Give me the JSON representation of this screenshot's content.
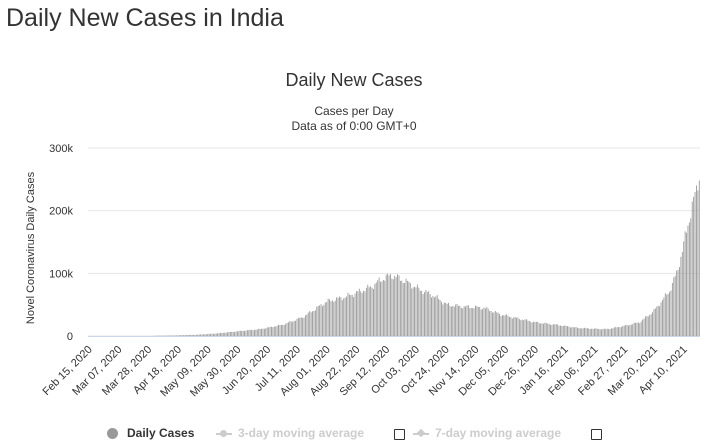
{
  "page_title": "Daily New Cases in India",
  "colors": {
    "bar": "#999999",
    "grid": "#e6e6e6",
    "text": "#333333",
    "legend_inactive": "#cccccc"
  },
  "chart_data": {
    "type": "bar",
    "title": "Daily New Cases",
    "subtitle": [
      "Cases per Day",
      "Data as of 0:00 GMT+0"
    ],
    "xlabel": "",
    "ylabel": "Novel Coronavirus Daily Cases",
    "ylim": [
      0,
      300000
    ],
    "y_ticks": [
      0,
      100000,
      200000,
      300000
    ],
    "y_tick_labels": [
      "0",
      "100k",
      "200k",
      "300k"
    ],
    "x_range": [
      "2020-02-15",
      "2021-04-21"
    ],
    "x_ticks": [
      "2020-02-15",
      "2020-03-07",
      "2020-03-28",
      "2020-04-18",
      "2020-05-09",
      "2020-05-30",
      "2020-06-20",
      "2020-07-11",
      "2020-08-01",
      "2020-08-22",
      "2020-09-12",
      "2020-10-03",
      "2020-10-24",
      "2020-11-14",
      "2020-12-05",
      "2020-12-26",
      "2021-01-16",
      "2021-02-06",
      "2021-02-27",
      "2021-03-20",
      "2021-04-10"
    ],
    "x_tick_labels": [
      "Feb 15, 2020",
      "Mar 07, 2020",
      "Mar 28, 2020",
      "Apr 18, 2020",
      "May 09, 2020",
      "May 30, 2020",
      "Jun 20, 2020",
      "Jul 11, 2020",
      "Aug 01, 2020",
      "Aug 22, 2020",
      "Sep 12, 2020",
      "Oct 03, 2020",
      "Oct 24, 2020",
      "Nov 14, 2020",
      "Dec 05, 2020",
      "Dec 26, 2020",
      "Jan 16, 2021",
      "Feb 06, 2021",
      "Feb 27, 2021",
      "Mar 20, 2021",
      "Apr 10, 2021"
    ],
    "series": [
      {
        "name": "Daily Cases",
        "points": [
          [
            "2020-02-15",
            0
          ],
          [
            "2020-03-15",
            20
          ],
          [
            "2020-03-28",
            200
          ],
          [
            "2020-04-15",
            900
          ],
          [
            "2020-05-01",
            2000
          ],
          [
            "2020-05-15",
            4000
          ],
          [
            "2020-06-01",
            8000
          ],
          [
            "2020-06-15",
            11000
          ],
          [
            "2020-07-01",
            18000
          ],
          [
            "2020-07-15",
            30000
          ],
          [
            "2020-08-01",
            55000
          ],
          [
            "2020-08-15",
            63000
          ],
          [
            "2020-09-01",
            78000
          ],
          [
            "2020-09-10",
            92000
          ],
          [
            "2020-09-16",
            97000
          ],
          [
            "2020-09-25",
            88000
          ],
          [
            "2020-10-05",
            75000
          ],
          [
            "2020-10-15",
            65000
          ],
          [
            "2020-10-25",
            50000
          ],
          [
            "2020-11-05",
            47000
          ],
          [
            "2020-11-20",
            45000
          ],
          [
            "2020-12-01",
            35000
          ],
          [
            "2020-12-10",
            30000
          ],
          [
            "2020-12-26",
            22000
          ],
          [
            "2021-01-10",
            18000
          ],
          [
            "2021-01-25",
            13000
          ],
          [
            "2021-02-06",
            11500
          ],
          [
            "2021-02-15",
            11000
          ],
          [
            "2021-02-27",
            16000
          ],
          [
            "2021-03-10",
            22000
          ],
          [
            "2021-03-20",
            40000
          ],
          [
            "2021-03-31",
            72000
          ],
          [
            "2021-04-05",
            100000
          ],
          [
            "2021-04-10",
            145000
          ],
          [
            "2021-04-15",
            200000
          ],
          [
            "2021-04-19",
            230000
          ],
          [
            "2021-04-21",
            260000
          ]
        ]
      }
    ],
    "legend": [
      {
        "label": "Daily Cases",
        "active": true
      },
      {
        "label": "3-day moving average",
        "active": false
      },
      {
        "label": "7-day moving average",
        "active": false
      }
    ],
    "legend_position": "bottom",
    "grid": true
  }
}
